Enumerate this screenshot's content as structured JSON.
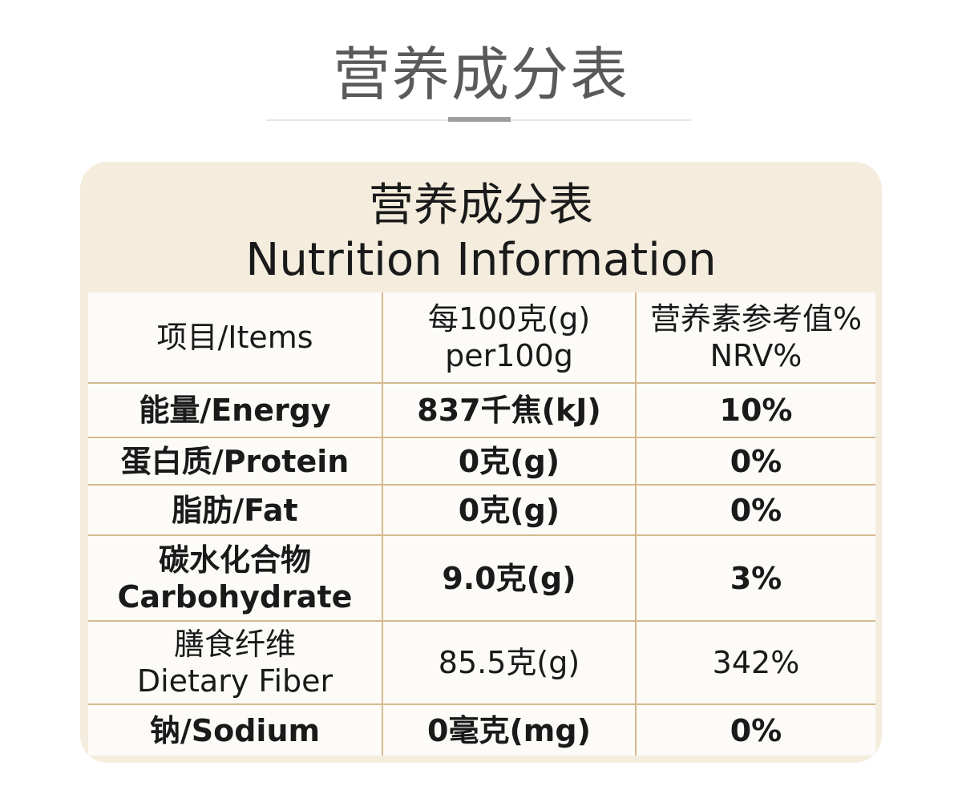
{
  "page_title": "营养成分表",
  "card": {
    "title_cn": "营养成分表",
    "title_en": "Nutrition Information"
  },
  "table": {
    "header": {
      "items": "项目/Items",
      "per100_cn": "每100克(g)",
      "per100_en": "per100g",
      "nrv_cn": "营养素参考值%",
      "nrv_en": "NRV%"
    },
    "rows": [
      {
        "item": "能量/Energy",
        "amount": "837千焦(kJ)",
        "nrv": "10%"
      },
      {
        "item": "蛋白质/Protein",
        "amount": "0克(g)",
        "nrv": "0%"
      },
      {
        "item": "脂肪/Fat",
        "amount": "0克(g)",
        "nrv": "0%"
      },
      {
        "item_cn": "碳水化合物",
        "item_en": "Carbohydrate",
        "amount": "9.0克(g)",
        "nrv": "3%"
      },
      {
        "item_cn": "膳食纤维",
        "item_en": "Dietary Fiber",
        "amount": "85.5克(g)",
        "nrv": "342%"
      },
      {
        "item": "钠/Sodium",
        "amount": "0毫克(mg)",
        "nrv": "0%"
      }
    ]
  }
}
